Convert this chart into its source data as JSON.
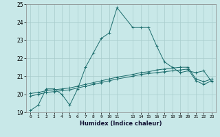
{
  "xlabel": "Humidex (Indice chaleur)",
  "ylabel": "",
  "xlim": [
    -0.5,
    23.5
  ],
  "ylim": [
    19,
    25
  ],
  "yticks": [
    19,
    20,
    21,
    22,
    23,
    24,
    25
  ],
  "xticks": [
    0,
    1,
    2,
    3,
    4,
    5,
    6,
    7,
    8,
    9,
    10,
    11,
    13,
    14,
    15,
    16,
    17,
    18,
    19,
    20,
    21,
    22,
    23
  ],
  "xtick_labels": [
    "0",
    "1",
    "2",
    "3",
    "4",
    "5",
    "6",
    "7",
    "8",
    "9",
    "10",
    "11",
    "13",
    "14",
    "15",
    "16",
    "17",
    "18",
    "19",
    "20",
    "21",
    "22",
    "23"
  ],
  "bg_color": "#c8e8e8",
  "grid_color": "#a8cccc",
  "line_color": "#1a6b6b",
  "line1_x": [
    0,
    1,
    2,
    3,
    4,
    5,
    6,
    7,
    8,
    9,
    10,
    11,
    13,
    14,
    15,
    16,
    17,
    18,
    19,
    20,
    21,
    22,
    23
  ],
  "line1_y": [
    19.1,
    19.4,
    20.3,
    20.3,
    20.0,
    19.4,
    20.3,
    21.5,
    22.3,
    23.1,
    23.4,
    24.8,
    23.7,
    23.7,
    23.7,
    22.7,
    21.8,
    21.5,
    21.2,
    21.3,
    21.2,
    21.3,
    20.7
  ],
  "line2_x": [
    0,
    1,
    2,
    3,
    4,
    5,
    6,
    7,
    8,
    9,
    10,
    11,
    13,
    14,
    15,
    16,
    17,
    18,
    19,
    20,
    21,
    22,
    23
  ],
  "line2_y": [
    19.9,
    20.0,
    20.1,
    20.15,
    20.2,
    20.25,
    20.35,
    20.45,
    20.55,
    20.65,
    20.75,
    20.85,
    21.0,
    21.1,
    21.15,
    21.2,
    21.25,
    21.3,
    21.35,
    21.4,
    20.75,
    20.55,
    20.75
  ],
  "line3_x": [
    0,
    1,
    2,
    3,
    4,
    5,
    6,
    7,
    8,
    9,
    10,
    11,
    13,
    14,
    15,
    16,
    17,
    18,
    19,
    20,
    21,
    22,
    23
  ],
  "line3_y": [
    20.05,
    20.1,
    20.2,
    20.25,
    20.3,
    20.35,
    20.45,
    20.55,
    20.65,
    20.75,
    20.85,
    20.95,
    21.1,
    21.2,
    21.25,
    21.35,
    21.4,
    21.45,
    21.5,
    21.5,
    20.85,
    20.7,
    20.85
  ]
}
